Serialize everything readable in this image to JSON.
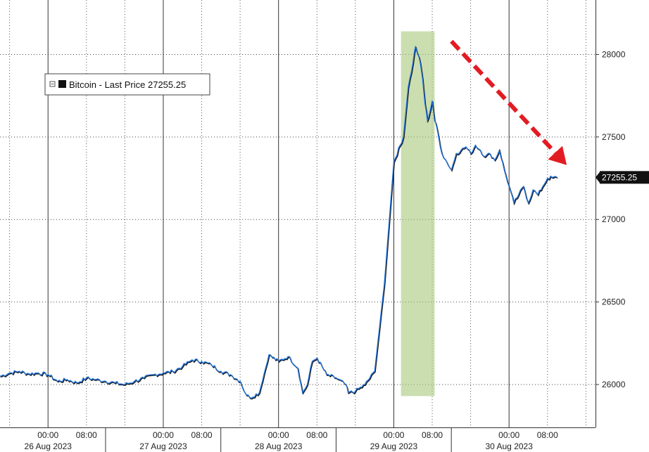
{
  "chart_data": {
    "type": "line",
    "title": "",
    "xlabel": "",
    "ylabel": "",
    "ylim": [
      25740,
      28330
    ],
    "y_ticks": [
      26000,
      26500,
      27000,
      27500,
      28000
    ],
    "y_tick_labels": [
      "26000",
      "26500",
      "27000",
      "27500",
      "28000"
    ],
    "x_tick_labels": [
      "00:00",
      "08:00",
      "00:00",
      "08:00",
      "00:00",
      "08:00",
      "00:00",
      "08:00",
      "00:00",
      "08:00"
    ],
    "x_tick_hours": [
      -24,
      -16,
      0,
      8,
      24,
      32,
      48,
      56,
      72,
      80
    ],
    "date_labels": [
      "26 Aug 2023",
      "27 Aug 2023",
      "28 Aug 2023",
      "29 Aug 2023",
      "30 Aug 2023"
    ],
    "date_hours": [
      -24,
      0,
      24,
      48,
      72
    ],
    "x_range_hours": [
      -34,
      90
    ],
    "grid": true,
    "legend": {
      "position": "top-left",
      "label": "Bitcoin - Last Price 27255.25"
    },
    "last_value_label": "27255.25",
    "series": [
      {
        "name": "Bitcoin - Last Price",
        "color": "#1f6fd6",
        "shadow_color": "#111111",
        "hours": [
          -34,
          -32,
          -30,
          -28,
          -26,
          -24,
          -22,
          -20,
          -18,
          -16,
          -14,
          -12,
          -10,
          -8,
          -6,
          -4,
          -2,
          0,
          2,
          4,
          6,
          8,
          10,
          12,
          14,
          16,
          17,
          18,
          20,
          22,
          24,
          26,
          28,
          29,
          30,
          31,
          32,
          34,
          36,
          38,
          38.5,
          40,
          42,
          44,
          46,
          48,
          50,
          51,
          52,
          52.5,
          53,
          53.5,
          54,
          54.5,
          55,
          55.5,
          56,
          56.5,
          57,
          58,
          59,
          60,
          61,
          62,
          63,
          64,
          65,
          66,
          67,
          68,
          69,
          70,
          71,
          72,
          73,
          74,
          75,
          76,
          77,
          78,
          79,
          80,
          81,
          82
        ],
        "values": [
          26050,
          26070,
          26080,
          26065,
          26070,
          26060,
          26020,
          26030,
          26010,
          26040,
          26030,
          26020,
          26010,
          26000,
          26020,
          26040,
          26060,
          26070,
          26080,
          26110,
          26150,
          26140,
          26120,
          26080,
          26060,
          26020,
          25950,
          25920,
          25950,
          26180,
          26140,
          26170,
          26100,
          25950,
          26000,
          26140,
          26160,
          26060,
          26040,
          26000,
          25950,
          25960,
          26000,
          26080,
          26600,
          27350,
          27500,
          27800,
          27950,
          28050,
          28000,
          27950,
          27850,
          27700,
          27600,
          27650,
          27720,
          27600,
          27550,
          27400,
          27350,
          27300,
          27400,
          27420,
          27440,
          27400,
          27450,
          27420,
          27380,
          27400,
          27360,
          27420,
          27300,
          27200,
          27100,
          27150,
          27200,
          27100,
          27180,
          27150,
          27200,
          27250,
          27255,
          27255
        ]
      }
    ],
    "highlight_band": {
      "from_hour": 49.5,
      "to_hour": 56.5,
      "color": "#a9c87a"
    },
    "trend_arrow": {
      "from_hour": 60,
      "from_value": 28080,
      "to_hour": 84,
      "to_value": 27330,
      "color": "#e31b23"
    }
  }
}
